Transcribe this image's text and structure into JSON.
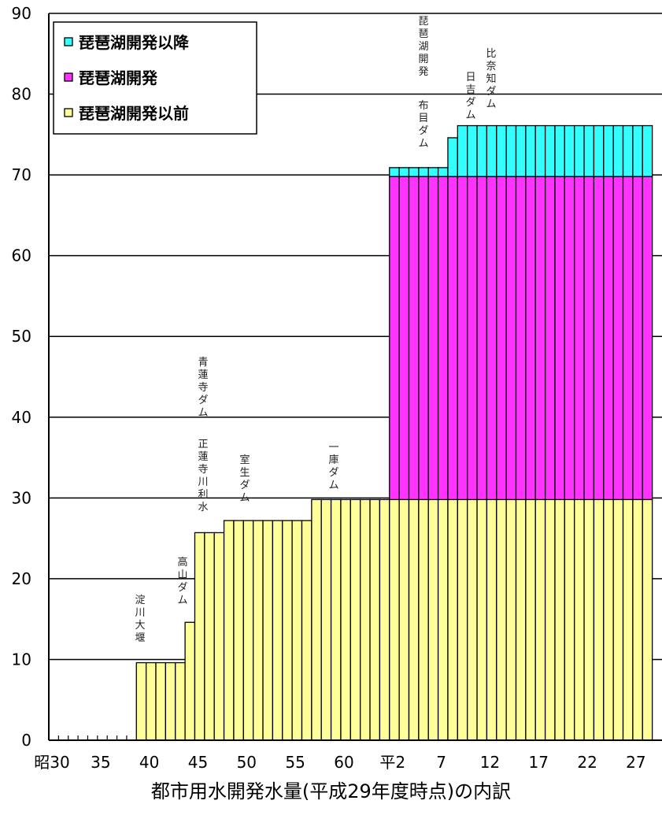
{
  "chart_data": {
    "type": "bar",
    "stacked": true,
    "title": "都市用水開発水量(平成29年度時点)の内訳",
    "xlabel": "",
    "ylabel": "",
    "ylim": [
      0,
      90
    ],
    "yticks": [
      0,
      10,
      20,
      30,
      40,
      50,
      60,
      70,
      80,
      90
    ],
    "grid": true,
    "legend_position": "top-left",
    "x_tick_labels": [
      {
        "label": "昭30",
        "x": 1955
      },
      {
        "label": "35",
        "x": 1960
      },
      {
        "label": "40",
        "x": 1965
      },
      {
        "label": "45",
        "x": 1970
      },
      {
        "label": "50",
        "x": 1975
      },
      {
        "label": "55",
        "x": 1980
      },
      {
        "label": "60",
        "x": 1985
      },
      {
        "label": "平2",
        "x": 1990
      },
      {
        "label": "7",
        "x": 1995
      },
      {
        "label": "12",
        "x": 2000
      },
      {
        "label": "17",
        "x": 2005
      },
      {
        "label": "22",
        "x": 2010
      },
      {
        "label": "27",
        "x": 2015
      }
    ],
    "categories": [
      1956,
      1957,
      1958,
      1959,
      1960,
      1961,
      1962,
      1963,
      1964,
      1965,
      1966,
      1967,
      1968,
      1969,
      1970,
      1971,
      1972,
      1973,
      1974,
      1975,
      1976,
      1977,
      1978,
      1979,
      1980,
      1981,
      1982,
      1983,
      1984,
      1985,
      1986,
      1987,
      1988,
      1989,
      1990,
      1991,
      1992,
      1993,
      1994,
      1995,
      1996,
      1997,
      1998,
      1999,
      2000,
      2001,
      2002,
      2003,
      2004,
      2005,
      2006,
      2007,
      2008,
      2009,
      2010,
      2011,
      2012,
      2013,
      2014,
      2015,
      2016,
      2017
    ],
    "series": [
      {
        "name": "琵琶湖開発以前",
        "color": "#ffff99",
        "values": [
          0,
          0,
          0,
          0,
          0,
          0,
          0,
          0,
          0,
          9.6,
          9.6,
          9.6,
          9.6,
          9.6,
          14.6,
          25.7,
          25.7,
          25.7,
          27.2,
          27.2,
          27.2,
          27.2,
          27.2,
          27.2,
          27.2,
          27.2,
          27.2,
          29.8,
          29.8,
          29.8,
          29.8,
          29.8,
          29.8,
          29.8,
          29.8,
          29.8,
          29.8,
          29.8,
          29.8,
          29.8,
          29.8,
          29.8,
          29.8,
          29.8,
          29.8,
          29.8,
          29.8,
          29.8,
          29.8,
          29.8,
          29.8,
          29.8,
          29.8,
          29.8,
          29.8,
          29.8,
          29.8,
          29.8,
          29.8,
          29.8,
          29.8,
          29.8
        ]
      },
      {
        "name": "琵琶湖開発",
        "color": "#ff33ff",
        "values": [
          0,
          0,
          0,
          0,
          0,
          0,
          0,
          0,
          0,
          0,
          0,
          0,
          0,
          0,
          0,
          0,
          0,
          0,
          0,
          0,
          0,
          0,
          0,
          0,
          0,
          0,
          0,
          0,
          0,
          0,
          0,
          0,
          0,
          0,
          0,
          40.0,
          40.0,
          40.0,
          40.0,
          40.0,
          40.0,
          40.0,
          40.0,
          40.0,
          40.0,
          40.0,
          40.0,
          40.0,
          40.0,
          40.0,
          40.0,
          40.0,
          40.0,
          40.0,
          40.0,
          40.0,
          40.0,
          40.0,
          40.0,
          40.0,
          40.0,
          40.0
        ]
      },
      {
        "name": "琵琶湖開発以降",
        "color": "#33ffff",
        "values": [
          0,
          0,
          0,
          0,
          0,
          0,
          0,
          0,
          0,
          0,
          0,
          0,
          0,
          0,
          0,
          0,
          0,
          0,
          0,
          0,
          0,
          0,
          0,
          0,
          0,
          0,
          0,
          0,
          0,
          0,
          0,
          0,
          0,
          0,
          0,
          1.1,
          1.1,
          1.1,
          1.1,
          1.1,
          1.1,
          4.8,
          6.3,
          6.3,
          6.3,
          6.3,
          6.3,
          6.3,
          6.3,
          6.3,
          6.3,
          6.3,
          6.3,
          6.3,
          6.3,
          6.3,
          6.3,
          6.3,
          6.3,
          6.3,
          6.3,
          6.3
        ]
      }
    ],
    "annotations": [
      {
        "text": "淀川大堰",
        "year": 1965
      },
      {
        "text": "高山ダム",
        "year": 1970
      },
      {
        "text": "正蓮寺川利水",
        "year": 1971
      },
      {
        "text": "青蓮寺ダム",
        "year": 1971
      },
      {
        "text": "室生ダム",
        "year": 1974
      },
      {
        "text": "一庫ダム",
        "year": 1983
      },
      {
        "text": "布目ダム",
        "year": 1991
      },
      {
        "text": "琵琶湖開発",
        "year": 1991
      },
      {
        "text": "日吉ダム",
        "year": 1997
      },
      {
        "text": "比奈知ダム",
        "year": 1998
      }
    ]
  }
}
